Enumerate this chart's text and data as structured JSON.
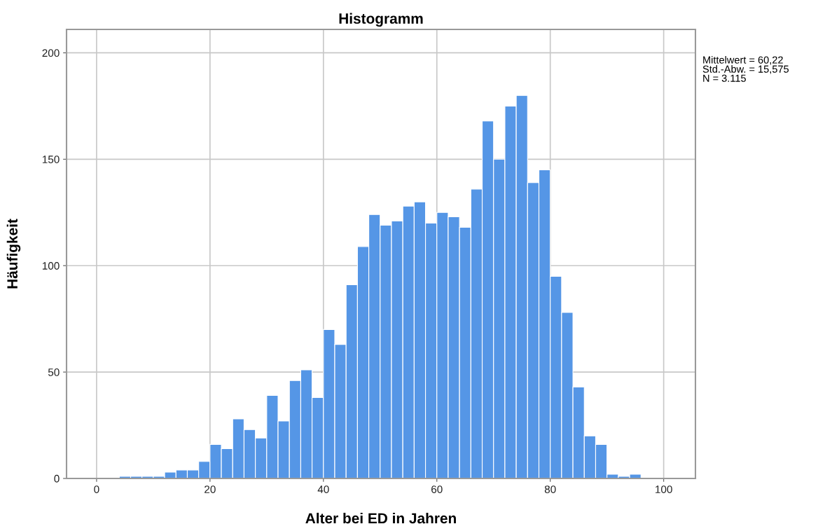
{
  "chart_data": {
    "type": "histogram",
    "title": "Histogramm",
    "xlabel": "Alter bei ED in Jahren",
    "ylabel": "Häufigkeit",
    "bins": [
      4,
      6,
      8,
      10,
      12,
      14,
      16,
      18,
      20,
      22,
      24,
      26,
      28,
      30,
      32,
      34,
      36,
      38,
      40,
      42,
      44,
      46,
      48,
      50,
      52,
      54,
      56,
      58,
      60,
      62,
      64,
      66,
      68,
      70,
      72,
      74,
      76,
      78,
      80,
      82,
      84,
      86,
      88,
      90,
      92,
      94,
      96
    ],
    "values": [
      1,
      1,
      1,
      1,
      3,
      4,
      4,
      8,
      16,
      14,
      28,
      23,
      19,
      39,
      27,
      46,
      51,
      38,
      70,
      63,
      91,
      109,
      124,
      119,
      121,
      128,
      130,
      120,
      125,
      123,
      118,
      136,
      168,
      150,
      175,
      180,
      139,
      145,
      95,
      78,
      43,
      20,
      16,
      2,
      1,
      2
    ],
    "color": "#5596e6",
    "xlim": [
      -5.3,
      105.6
    ],
    "xticks": [
      0,
      20,
      40,
      60,
      80,
      100
    ],
    "ylim": [
      0,
      211
    ],
    "yticks": [
      0,
      50,
      100,
      150,
      200
    ],
    "grid": true,
    "annotations": [
      "Mittelwert = 60,22\nStd.-Abw. = 15,575\nN = 3.115"
    ]
  }
}
